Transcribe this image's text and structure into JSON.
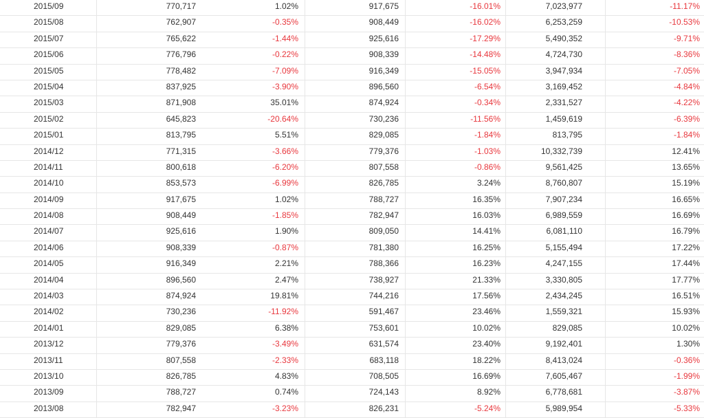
{
  "table": {
    "rows": [
      {
        "month": "2015/09",
        "value1": "770,717",
        "rate1": "1.02%",
        "value2": "917,675",
        "rate2": "-16.01%",
        "value3": "7,023,977",
        "rate3": "-11.17%"
      },
      {
        "month": "2015/08",
        "value1": "762,907",
        "rate1": "-0.35%",
        "value2": "908,449",
        "rate2": "-16.02%",
        "value3": "6,253,259",
        "rate3": "-10.53%"
      },
      {
        "month": "2015/07",
        "value1": "765,622",
        "rate1": "-1.44%",
        "value2": "925,616",
        "rate2": "-17.29%",
        "value3": "5,490,352",
        "rate3": "-9.71%"
      },
      {
        "month": "2015/06",
        "value1": "776,796",
        "rate1": "-0.22%",
        "value2": "908,339",
        "rate2": "-14.48%",
        "value3": "4,724,730",
        "rate3": "-8.36%"
      },
      {
        "month": "2015/05",
        "value1": "778,482",
        "rate1": "-7.09%",
        "value2": "916,349",
        "rate2": "-15.05%",
        "value3": "3,947,934",
        "rate3": "-7.05%"
      },
      {
        "month": "2015/04",
        "value1": "837,925",
        "rate1": "-3.90%",
        "value2": "896,560",
        "rate2": "-6.54%",
        "value3": "3,169,452",
        "rate3": "-4.84%"
      },
      {
        "month": "2015/03",
        "value1": "871,908",
        "rate1": "35.01%",
        "value2": "874,924",
        "rate2": "-0.34%",
        "value3": "2,331,527",
        "rate3": "-4.22%"
      },
      {
        "month": "2015/02",
        "value1": "645,823",
        "rate1": "-20.64%",
        "value2": "730,236",
        "rate2": "-11.56%",
        "value3": "1,459,619",
        "rate3": "-6.39%"
      },
      {
        "month": "2015/01",
        "value1": "813,795",
        "rate1": "5.51%",
        "value2": "829,085",
        "rate2": "-1.84%",
        "value3": "813,795",
        "rate3": "-1.84%"
      },
      {
        "month": "2014/12",
        "value1": "771,315",
        "rate1": "-3.66%",
        "value2": "779,376",
        "rate2": "-1.03%",
        "value3": "10,332,739",
        "rate3": "12.41%"
      },
      {
        "month": "2014/11",
        "value1": "800,618",
        "rate1": "-6.20%",
        "value2": "807,558",
        "rate2": "-0.86%",
        "value3": "9,561,425",
        "rate3": "13.65%"
      },
      {
        "month": "2014/10",
        "value1": "853,573",
        "rate1": "-6.99%",
        "value2": "826,785",
        "rate2": "3.24%",
        "value3": "8,760,807",
        "rate3": "15.19%"
      },
      {
        "month": "2014/09",
        "value1": "917,675",
        "rate1": "1.02%",
        "value2": "788,727",
        "rate2": "16.35%",
        "value3": "7,907,234",
        "rate3": "16.65%"
      },
      {
        "month": "2014/08",
        "value1": "908,449",
        "rate1": "-1.85%",
        "value2": "782,947",
        "rate2": "16.03%",
        "value3": "6,989,559",
        "rate3": "16.69%"
      },
      {
        "month": "2014/07",
        "value1": "925,616",
        "rate1": "1.90%",
        "value2": "809,050",
        "rate2": "14.41%",
        "value3": "6,081,110",
        "rate3": "16.79%"
      },
      {
        "month": "2014/06",
        "value1": "908,339",
        "rate1": "-0.87%",
        "value2": "781,380",
        "rate2": "16.25%",
        "value3": "5,155,494",
        "rate3": "17.22%"
      },
      {
        "month": "2014/05",
        "value1": "916,349",
        "rate1": "2.21%",
        "value2": "788,366",
        "rate2": "16.23%",
        "value3": "4,247,155",
        "rate3": "17.44%"
      },
      {
        "month": "2014/04",
        "value1": "896,560",
        "rate1": "2.47%",
        "value2": "738,927",
        "rate2": "21.33%",
        "value3": "3,330,805",
        "rate3": "17.77%"
      },
      {
        "month": "2014/03",
        "value1": "874,924",
        "rate1": "19.81%",
        "value2": "744,216",
        "rate2": "17.56%",
        "value3": "2,434,245",
        "rate3": "16.51%"
      },
      {
        "month": "2014/02",
        "value1": "730,236",
        "rate1": "-11.92%",
        "value2": "591,467",
        "rate2": "23.46%",
        "value3": "1,559,321",
        "rate3": "15.93%"
      },
      {
        "month": "2014/01",
        "value1": "829,085",
        "rate1": "6.38%",
        "value2": "753,601",
        "rate2": "10.02%",
        "value3": "829,085",
        "rate3": "10.02%"
      },
      {
        "month": "2013/12",
        "value1": "779,376",
        "rate1": "-3.49%",
        "value2": "631,574",
        "rate2": "23.40%",
        "value3": "9,192,401",
        "rate3": "1.30%"
      },
      {
        "month": "2013/11",
        "value1": "807,558",
        "rate1": "-2.33%",
        "value2": "683,118",
        "rate2": "18.22%",
        "value3": "8,413,024",
        "rate3": "-0.36%"
      },
      {
        "month": "2013/10",
        "value1": "826,785",
        "rate1": "4.83%",
        "value2": "708,505",
        "rate2": "16.69%",
        "value3": "7,605,467",
        "rate3": "-1.99%"
      },
      {
        "month": "2013/09",
        "value1": "788,727",
        "rate1": "0.74%",
        "value2": "724,143",
        "rate2": "8.92%",
        "value3": "6,778,681",
        "rate3": "-3.87%"
      },
      {
        "month": "2013/08",
        "value1": "782,947",
        "rate1": "-3.23%",
        "value2": "826,231",
        "rate2": "-5.24%",
        "value3": "5,989,954",
        "rate3": "-5.33%"
      }
    ]
  },
  "colors": {
    "negative": "#e8373d",
    "text": "#333333",
    "grid": "#e6e6e6"
  }
}
